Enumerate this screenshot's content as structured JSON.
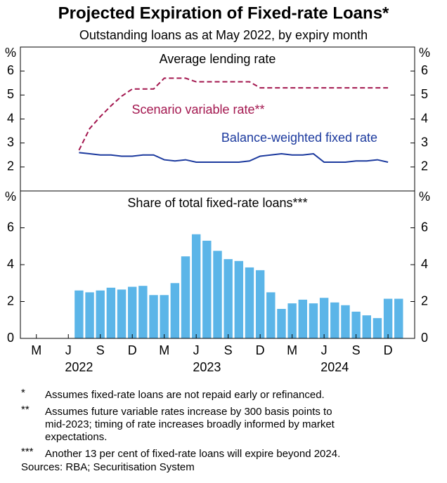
{
  "chart_data": {
    "type": "combo",
    "title": "Projected Expiration of Fixed-rate Loans*",
    "subtitle": "Outstanding loans as at May 2022, by expiry month",
    "categories": [
      null,
      "M",
      null,
      null,
      "J",
      null,
      null,
      "S",
      null,
      null,
      "D",
      null,
      null,
      "M",
      null,
      null,
      "J",
      null,
      null,
      "S",
      null,
      null,
      "D",
      null,
      null,
      "M",
      null,
      null,
      "J",
      null,
      null,
      "S",
      null,
      null,
      "D",
      null,
      null
    ],
    "years": [
      "2022",
      "2023",
      "2024"
    ],
    "panels": [
      {
        "type": "line",
        "title": "Average lending rate",
        "unit": "%",
        "ylim": [
          1,
          7
        ],
        "yticks": [
          2,
          3,
          4,
          5,
          6
        ],
        "series": [
          {
            "name": "Scenario variable rate**",
            "color": "#a3174f",
            "dash": true,
            "values": [
              null,
              null,
              null,
              null,
              null,
              2.7,
              3.6,
              4.1,
              4.55,
              4.95,
              5.25,
              5.25,
              5.25,
              5.7,
              5.7,
              5.7,
              5.55,
              5.55,
              5.55,
              5.55,
              5.55,
              5.55,
              5.3,
              5.3,
              5.3,
              5.3,
              5.3,
              5.3,
              5.3,
              5.3,
              5.3,
              5.3,
              5.3,
              5.3,
              5.3,
              null,
              null
            ]
          },
          {
            "name": "Balance-weighted fixed rate",
            "color": "#1c3a9e",
            "dash": false,
            "values": [
              null,
              null,
              null,
              null,
              null,
              2.6,
              2.55,
              2.5,
              2.5,
              2.45,
              2.45,
              2.5,
              2.5,
              2.3,
              2.25,
              2.3,
              2.2,
              2.2,
              2.2,
              2.2,
              2.2,
              2.25,
              2.45,
              2.5,
              2.55,
              2.5,
              2.5,
              2.55,
              2.2,
              2.2,
              2.2,
              2.25,
              2.25,
              2.3,
              2.2,
              null,
              null
            ]
          }
        ]
      },
      {
        "type": "bar",
        "title": "Share of total fixed-rate loans***",
        "unit": "%",
        "ylim": [
          0,
          8
        ],
        "yticks": [
          0,
          2,
          4,
          6
        ],
        "color": "#5bb5e8",
        "values": [
          null,
          null,
          null,
          null,
          null,
          2.6,
          2.5,
          2.6,
          2.75,
          2.65,
          2.8,
          2.85,
          2.35,
          2.35,
          3.0,
          4.45,
          5.65,
          5.3,
          4.75,
          4.3,
          4.2,
          3.85,
          3.7,
          2.5,
          1.6,
          1.9,
          2.1,
          1.9,
          2.2,
          1.95,
          1.8,
          1.45,
          1.25,
          1.1,
          2.15,
          2.15,
          null
        ]
      }
    ],
    "footnotes": [
      {
        "marker": "*",
        "lines": [
          "Assumes fixed-rate loans are not repaid early or refinanced."
        ]
      },
      {
        "marker": "**",
        "lines": [
          "Assumes future variable rates increase by 300 basis points to",
          "mid-2023; timing of rate increases broadly informed by market",
          "expectations."
        ]
      },
      {
        "marker": "***",
        "lines": [
          "Another 13 per cent of fixed-rate loans will expire beyond 2024."
        ]
      }
    ],
    "sources": "Sources: RBA; Securitisation System"
  }
}
